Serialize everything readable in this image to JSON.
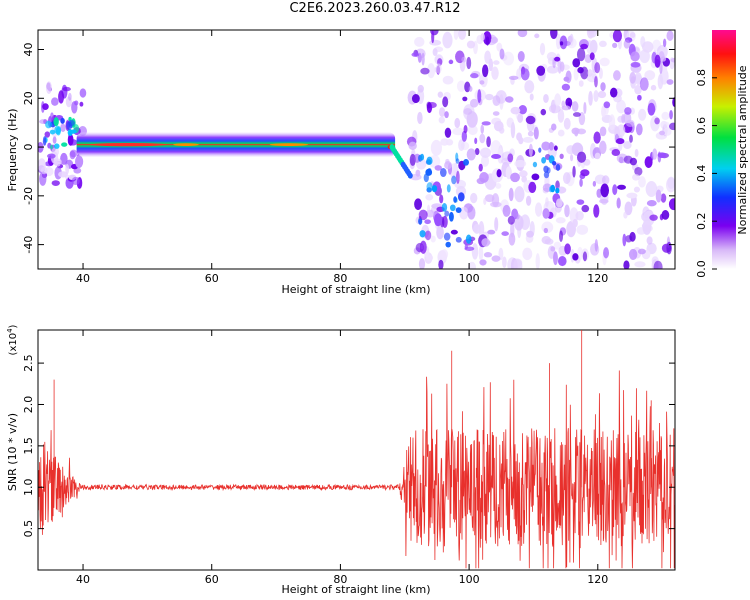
{
  "title": "C2E6.2023.260.03.47.R12",
  "chart_data": [
    {
      "type": "heatmap",
      "xlabel": "Height of straight line (km)",
      "ylabel": "Frequency (Hz)",
      "xlim": [
        33,
        132
      ],
      "ylim": [
        -50,
        48
      ],
      "x_ticks": [
        40,
        60,
        80,
        100,
        120
      ],
      "y_ticks": [
        -40,
        -20,
        0,
        20,
        40
      ],
      "colorbar": {
        "label": "Normalized spectral amplitude",
        "range": [
          0,
          1
        ],
        "ticks": [
          "0.0",
          "0.2",
          "0.4",
          "0.6",
          "0.8"
        ],
        "colormap": "rainbow (white-violet-blue-cyan-green-yellow-red-magenta)"
      },
      "features": [
        {
          "name": "noisy-start",
          "x_range": [
            33,
            40
          ],
          "freq_range": [
            -15,
            25
          ]
        },
        {
          "name": "steady-line",
          "x_range": [
            40,
            88
          ],
          "freq_center": 1,
          "peak_amplitude": 0.85
        },
        {
          "name": "transition",
          "x_range": [
            88,
            91
          ],
          "freq_range": [
            -15,
            2
          ]
        },
        {
          "name": "scattered-noise",
          "x_range": [
            91,
            132
          ],
          "freq_range": [
            -50,
            48
          ]
        }
      ]
    },
    {
      "type": "line",
      "xlabel": "Height of straight line (km)",
      "ylabel": "SNR (10 * v/v)",
      "y_multiplier": "(x10",
      "y_multiplier_exp": "4",
      "y_multiplier_close": ")",
      "xlim": [
        33,
        132
      ],
      "ylim": [
        0,
        2.9
      ],
      "x_ticks": [
        40,
        60,
        80,
        100,
        120
      ],
      "y_ticks": [
        "0.5",
        "1.0",
        "1.5",
        "2.0",
        "2.5"
      ],
      "series_color": "#e8302c",
      "segments": [
        {
          "x_range": [
            33,
            40
          ],
          "mean": 1.0,
          "spread": 0.8,
          "peak": 2.3
        },
        {
          "x_range": [
            40,
            89
          ],
          "mean": 1.0,
          "spread": 0.03
        },
        {
          "x_range": [
            89,
            132
          ],
          "mean": 1.0,
          "spread": 0.9,
          "peak": 2.9
        }
      ]
    }
  ]
}
